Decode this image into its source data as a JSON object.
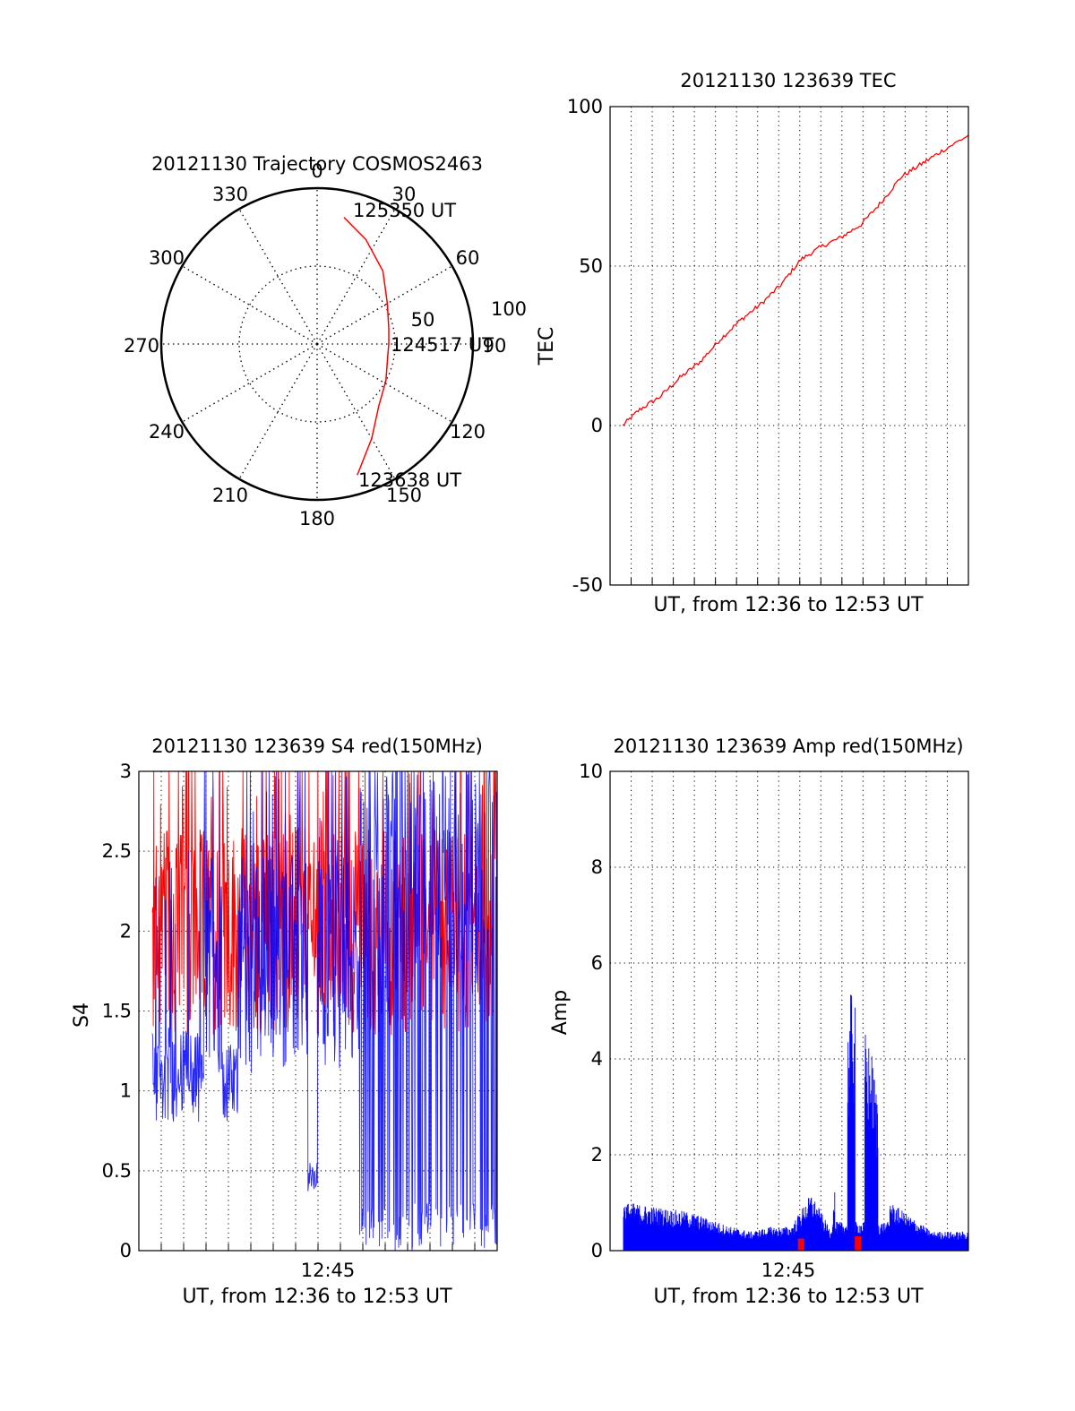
{
  "colors": {
    "red": "#ff0000",
    "blue": "#0000ff",
    "axes": "#000000",
    "grid": "#000000"
  },
  "chart_data": [
    {
      "type": "polar",
      "title": "20121130 Trajectory COSMOS2463",
      "angle_ticks": [
        "0",
        "30",
        "60",
        "90",
        "120",
        "150",
        "180",
        "210",
        "240",
        "270",
        "300",
        "330"
      ],
      "radius_ticks": [
        "50",
        "100"
      ],
      "rlim": [
        0,
        100
      ],
      "grid": true,
      "annotations": [
        {
          "text": "125350 UT",
          "az": 12,
          "r": 83
        },
        {
          "text": "124517 UT",
          "az": 90,
          "r": 46
        },
        {
          "text": "123638 UT",
          "az": 163,
          "r": 88
        }
      ],
      "series": [
        {
          "color": "#ff0000",
          "points": [
            [
              163,
              88
            ],
            [
              150,
              70
            ],
            [
              135,
              56
            ],
            [
              118,
              50
            ],
            [
              100,
              46
            ],
            [
              90,
              46
            ],
            [
              78,
              47
            ],
            [
              60,
              52
            ],
            [
              42,
              63
            ],
            [
              25,
              74
            ],
            [
              12,
              83
            ]
          ]
        }
      ]
    },
    {
      "type": "line",
      "title": "20121130 123639 TEC",
      "xlabel": "UT, from 12:36 to 12:53 UT",
      "ylabel": "TEC",
      "ylim": [
        -50,
        100
      ],
      "yticks": [
        "-50",
        "0",
        "50",
        "100"
      ],
      "xlim": [
        "12:36:39",
        "12:53:50"
      ],
      "grid": true,
      "series": [
        {
          "color": "#ff0000",
          "x": [
            "12:36:39",
            "12:37:30",
            "12:38:30",
            "12:39:30",
            "12:40:30",
            "12:41:30",
            "12:42:30",
            "12:43:30",
            "12:44:30",
            "12:45:30",
            "12:46:30",
            "12:47:30",
            "12:48:30",
            "12:49:30",
            "12:50:30",
            "12:51:30",
            "12:52:30",
            "12:53:50"
          ],
          "y": [
            0,
            5,
            9,
            15,
            20,
            27,
            33,
            38,
            44,
            52,
            56,
            59,
            63,
            70,
            78,
            82,
            86,
            91
          ]
        }
      ]
    },
    {
      "type": "line",
      "title": "20121130 123639 S4 red(150MHz)",
      "xlabel": "UT, from 12:36 to 12:53 UT",
      "ylabel": "S4",
      "ylim": [
        0,
        3
      ],
      "yticks": [
        "0",
        "0.5",
        "1",
        "1.5",
        "2",
        "2.5",
        "3"
      ],
      "xtick_labels": [
        "12:45"
      ],
      "grid": true,
      "series": [
        {
          "color": "#ff0000",
          "range": [
            1.3,
            3.0
          ],
          "mean": 2.0
        },
        {
          "color": "#0000ff",
          "range": [
            0,
            3.0
          ],
          "mean": 1.8
        }
      ]
    },
    {
      "type": "bar",
      "title": "20121130 123639 Amp red(150MHz)",
      "xlabel": "UT, from 12:36 to 12:53 UT",
      "ylabel": "Amp",
      "ylim": [
        0,
        10
      ],
      "yticks": [
        "0",
        "2",
        "4",
        "6",
        "8",
        "10"
      ],
      "xtick_labels": [
        "12:45"
      ],
      "grid": true,
      "series": [
        {
          "color": "#0000ff",
          "x": [
            "12:37:00",
            "12:40:00",
            "12:42:00",
            "12:43:00",
            "12:44:00",
            "12:45:00",
            "12:46:00",
            "12:47:00",
            "12:48:00",
            "12:49:00",
            "12:50:00",
            "12:52:00"
          ],
          "y": [
            1.0,
            0.8,
            0.5,
            0.4,
            0.5,
            0.5,
            1.2,
            0.4,
            5.5,
            4.2,
            1.0,
            0.4
          ]
        },
        {
          "color": "#ff0000",
          "x": [
            "12:45:30",
            "12:48:20"
          ],
          "y": [
            0.25,
            0.3
          ]
        }
      ]
    }
  ]
}
